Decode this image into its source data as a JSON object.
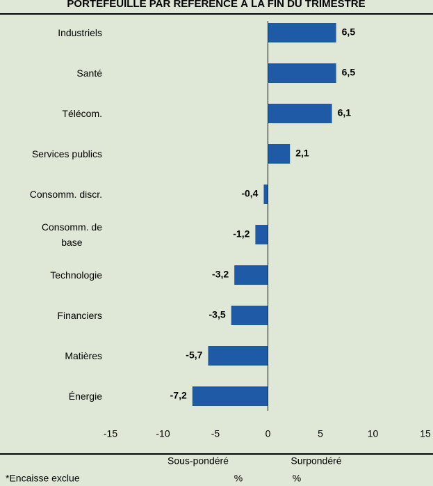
{
  "chart_data": {
    "type": "hbar",
    "title": "PORTEFEUILLE PAR RÉFÉRENCE À LA FIN DU TRIMESTRE",
    "categories": [
      "Industriels",
      "Santé",
      "Télécom.",
      "Services publics",
      "Consomm. discr.",
      "Consomm. de\nbase",
      "Technologie",
      "Financiers",
      "Matières",
      "Énergie"
    ],
    "values": [
      6.5,
      6.5,
      6.1,
      2.1,
      -0.4,
      -1.2,
      -3.2,
      -3.5,
      -5.7,
      -7.2
    ],
    "value_labels": [
      "6,5",
      "6,5",
      "6,1",
      "2,1",
      "-0,4",
      "-1,2",
      "-3,2",
      "-3,5",
      "-5,7",
      "-7,2"
    ],
    "color": "#1f5aa6",
    "xlim": [
      -15,
      15
    ],
    "xticks": [
      -15,
      -10,
      -5,
      0,
      5,
      10,
      15
    ],
    "annotations": {
      "left": "Sous-pondéré",
      "left_unit": "%",
      "right": "Surpondéré",
      "right_unit": "%",
      "note": "*Encaisse exclue"
    }
  }
}
